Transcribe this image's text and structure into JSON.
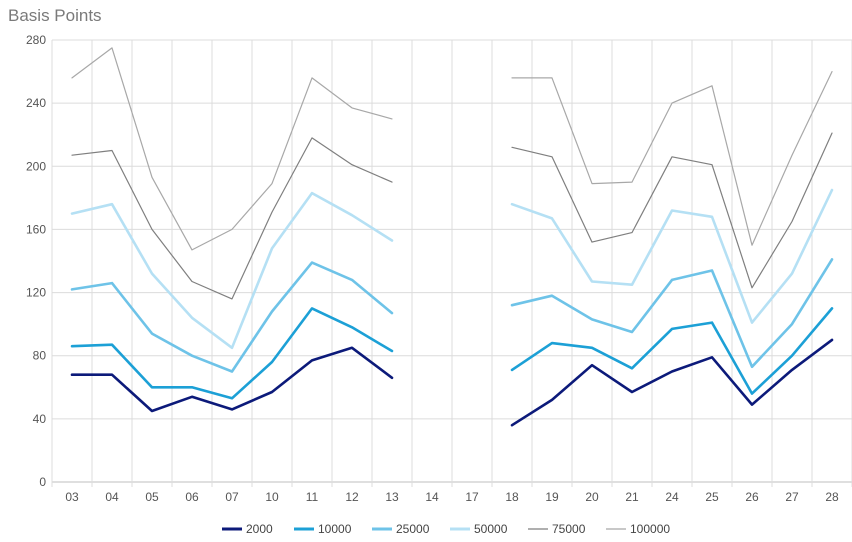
{
  "chart_data": {
    "type": "line",
    "title": "Basis Points",
    "xlabel": "",
    "ylabel": "",
    "ylim": [
      0,
      280
    ],
    "yticks": [
      "0",
      "40",
      "80",
      "120",
      "160",
      "200",
      "240",
      "280"
    ],
    "categories": [
      "03",
      "04",
      "05",
      "06",
      "07",
      "10",
      "11",
      "12",
      "13",
      "14",
      "17",
      "18",
      "19",
      "20",
      "21",
      "24",
      "25",
      "26",
      "27",
      "28"
    ],
    "grid": true,
    "legend_position": "bottom",
    "series": [
      {
        "name": "2000",
        "color": "#0c1a7a",
        "width": 2.6,
        "values": [
          68,
          68,
          45,
          54,
          46,
          57,
          77,
          85,
          66,
          null,
          null,
          36,
          52,
          74,
          57,
          70,
          79,
          49,
          71,
          90
        ]
      },
      {
        "name": "10000",
        "color": "#1ca0d6",
        "width": 2.6,
        "values": [
          86,
          87,
          60,
          60,
          53,
          76,
          110,
          98,
          83,
          null,
          null,
          71,
          88,
          85,
          72,
          97,
          101,
          56,
          80,
          110
        ]
      },
      {
        "name": "25000",
        "color": "#6ec3e8",
        "width": 2.6,
        "values": [
          122,
          126,
          94,
          80,
          70,
          108,
          139,
          128,
          107,
          null,
          null,
          112,
          118,
          103,
          95,
          128,
          134,
          73,
          100,
          141
        ]
      },
      {
        "name": "50000",
        "color": "#b5e0f4",
        "width": 2.6,
        "values": [
          170,
          176,
          132,
          104,
          85,
          148,
          183,
          169,
          153,
          null,
          null,
          176,
          167,
          127,
          125,
          172,
          168,
          101,
          132,
          185
        ]
      },
      {
        "name": "75000",
        "color": "#7f7f7f",
        "width": 1.2,
        "values": [
          207,
          210,
          160,
          127,
          116,
          171,
          218,
          201,
          190,
          null,
          null,
          212,
          206,
          152,
          158,
          206,
          201,
          123,
          165,
          221
        ]
      },
      {
        "name": "100000",
        "color": "#a8a8a8",
        "width": 1.2,
        "values": [
          256,
          275,
          193,
          147,
          160,
          189,
          256,
          237,
          230,
          null,
          null,
          256,
          256,
          189,
          190,
          240,
          251,
          150,
          207,
          260
        ]
      }
    ]
  }
}
